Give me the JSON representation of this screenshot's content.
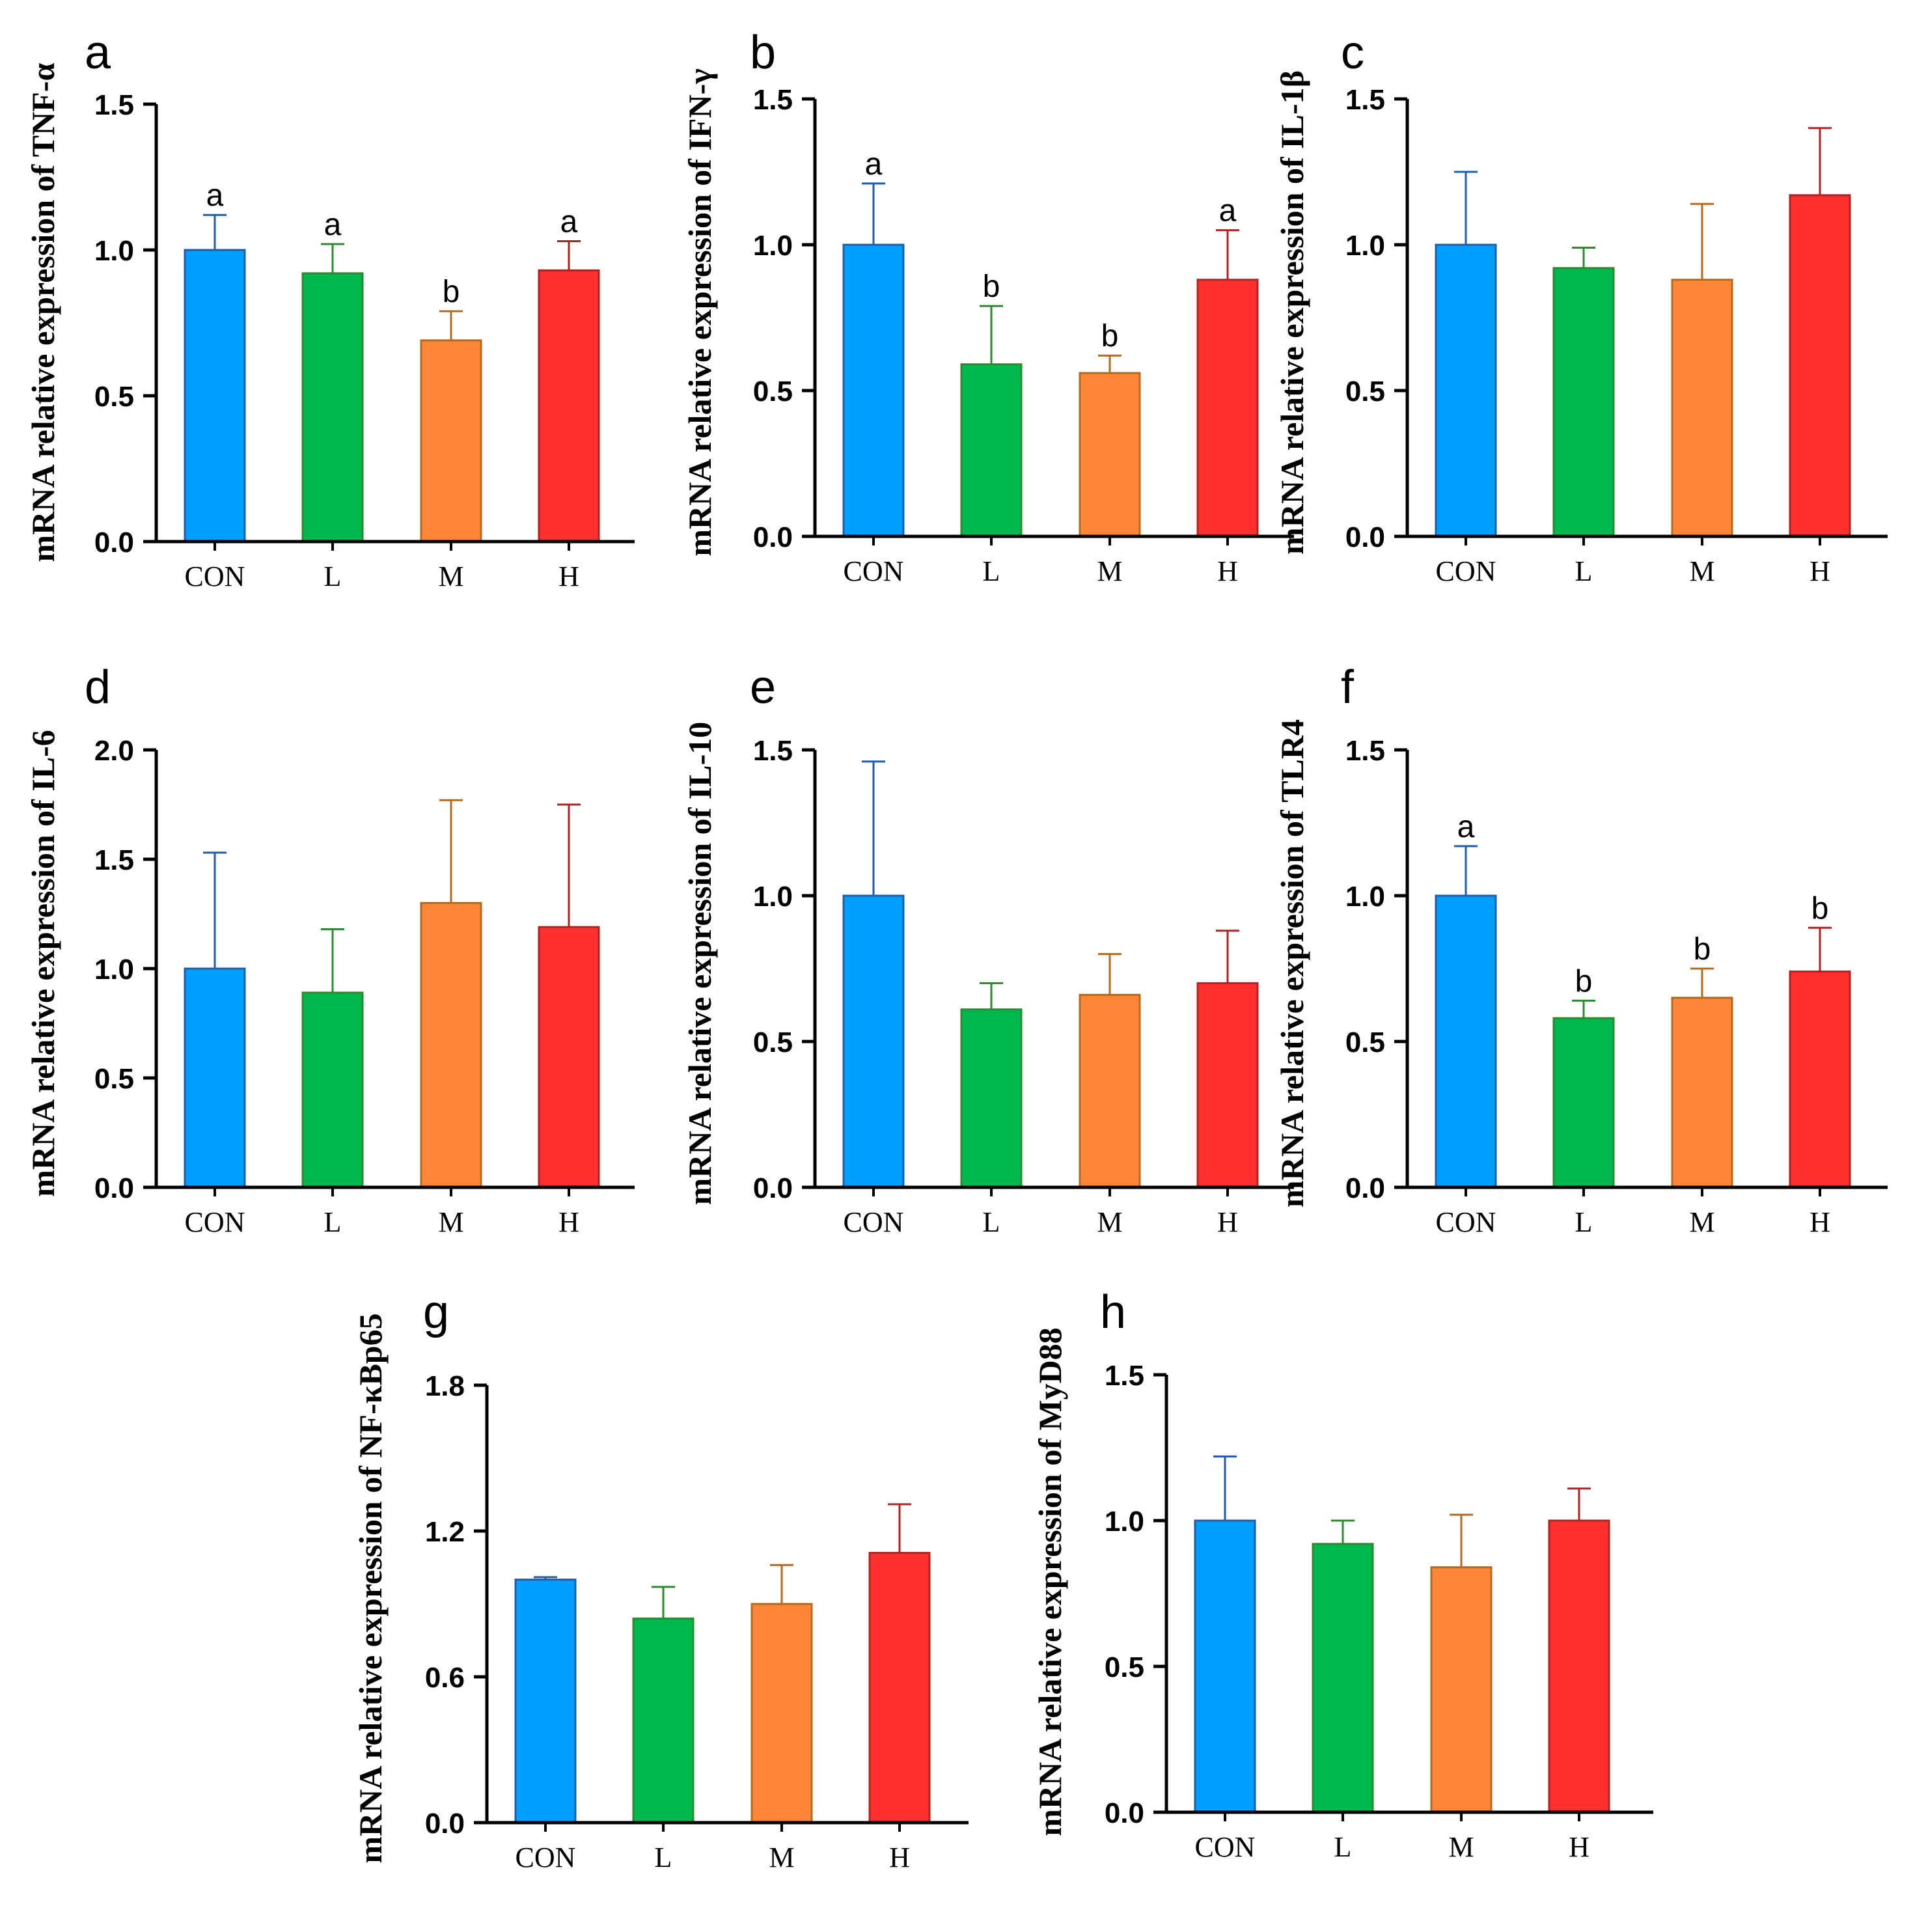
{
  "styles": {
    "colors": {
      "CON": "#009fff",
      "L": "#00b84f",
      "M": "#ff8538",
      "H": "#ff3030"
    },
    "edges": {
      "CON": "#1f5da8",
      "L": "#2b8a2b",
      "M": "#b36a1a",
      "H": "#b22222"
    }
  },
  "chart_data": [
    {
      "panel": "a",
      "type": "bar",
      "ylabel": "mRNA relative expression of TNF-α",
      "categories": [
        "CON",
        "L",
        "M",
        "H"
      ],
      "values": [
        1.0,
        0.92,
        0.69,
        0.93
      ],
      "errors": [
        0.12,
        0.1,
        0.1,
        0.1
      ],
      "significance": [
        "a",
        "a",
        "b",
        "a"
      ],
      "ylim": [
        0,
        1.5
      ],
      "yticks": [
        0.0,
        0.5,
        1.0,
        1.5
      ],
      "ytick_labels": [
        "0.0",
        "0.5",
        "1.0",
        "1.5"
      ]
    },
    {
      "panel": "b",
      "type": "bar",
      "ylabel": "mRNA relative expression of IFN-γ",
      "categories": [
        "CON",
        "L",
        "M",
        "H"
      ],
      "values": [
        1.0,
        0.59,
        0.56,
        0.88
      ],
      "errors": [
        0.21,
        0.2,
        0.06,
        0.17
      ],
      "significance": [
        "a",
        "b",
        "b",
        "a"
      ],
      "ylim": [
        0,
        1.5
      ],
      "yticks": [
        0.0,
        0.5,
        1.0,
        1.5
      ],
      "ytick_labels": [
        "0.0",
        "0.5",
        "1.0",
        "1.5"
      ]
    },
    {
      "panel": "c",
      "type": "bar",
      "ylabel": "mRNA relative expression of IL-1β",
      "categories": [
        "CON",
        "L",
        "M",
        "H"
      ],
      "values": [
        1.0,
        0.92,
        0.88,
        1.17
      ],
      "errors": [
        0.25,
        0.07,
        0.26,
        0.23
      ],
      "significance": [
        "",
        "",
        "",
        ""
      ],
      "ylim": [
        0,
        1.5
      ],
      "yticks": [
        0.0,
        0.5,
        1.0,
        1.5
      ],
      "ytick_labels": [
        "0.0",
        "0.5",
        "1.0",
        "1.5"
      ]
    },
    {
      "panel": "d",
      "type": "bar",
      "ylabel": "mRNA relative expression of IL-6",
      "categories": [
        "CON",
        "L",
        "M",
        "H"
      ],
      "values": [
        1.0,
        0.89,
        1.3,
        1.19
      ],
      "errors": [
        0.53,
        0.29,
        0.47,
        0.56
      ],
      "significance": [
        "",
        "",
        "",
        ""
      ],
      "ylim": [
        0,
        2.0
      ],
      "yticks": [
        0.0,
        0.5,
        1.0,
        1.5,
        2.0
      ],
      "ytick_labels": [
        "0.0",
        "0.5",
        "1.0",
        "1.5",
        "2.0"
      ]
    },
    {
      "panel": "e",
      "type": "bar",
      "ylabel": "mRNA relative expression of IL-10",
      "categories": [
        "CON",
        "L",
        "M",
        "H"
      ],
      "values": [
        1.0,
        0.61,
        0.66,
        0.7
      ],
      "errors": [
        0.46,
        0.09,
        0.14,
        0.18
      ],
      "significance": [
        "",
        "",
        "",
        ""
      ],
      "ylim": [
        0,
        1.5
      ],
      "yticks": [
        0.0,
        0.5,
        1.0,
        1.5
      ],
      "ytick_labels": [
        "0.0",
        "0.5",
        "1.0",
        "1.5"
      ]
    },
    {
      "panel": "f",
      "type": "bar",
      "ylabel": "mRNA relative expression of TLR4",
      "categories": [
        "CON",
        "L",
        "M",
        "H"
      ],
      "values": [
        1.0,
        0.58,
        0.65,
        0.74
      ],
      "errors": [
        0.17,
        0.06,
        0.1,
        0.15
      ],
      "significance": [
        "a",
        "b",
        "b",
        "b"
      ],
      "ylim": [
        0,
        1.5
      ],
      "yticks": [
        0.0,
        0.5,
        1.0,
        1.5
      ],
      "ytick_labels": [
        "0.0",
        "0.5",
        "1.0",
        "1.5"
      ]
    },
    {
      "panel": "g",
      "type": "bar",
      "ylabel": "mRNA relative expression of NF-κBp65",
      "categories": [
        "CON",
        "L",
        "M",
        "H"
      ],
      "values": [
        1.0,
        0.84,
        0.9,
        1.11
      ],
      "errors": [
        0.01,
        0.13,
        0.16,
        0.2
      ],
      "significance": [
        "",
        "",
        "",
        ""
      ],
      "ylim": [
        0,
        1.8
      ],
      "yticks": [
        0.0,
        0.6,
        1.2,
        1.8
      ],
      "ytick_labels": [
        "0.0",
        "0.6",
        "1.2",
        "1.8"
      ]
    },
    {
      "panel": "h",
      "type": "bar",
      "ylabel": "mRNA relative expression of MyD88",
      "categories": [
        "CON",
        "L",
        "M",
        "H"
      ],
      "values": [
        1.0,
        0.92,
        0.84,
        1.0
      ],
      "errors": [
        0.22,
        0.08,
        0.18,
        0.11
      ],
      "significance": [
        "",
        "",
        "",
        ""
      ],
      "ylim": [
        0,
        1.5
      ],
      "yticks": [
        0.0,
        0.5,
        1.0,
        1.5
      ],
      "ytick_labels": [
        "0.0",
        "0.5",
        "1.0",
        "1.5"
      ]
    }
  ]
}
